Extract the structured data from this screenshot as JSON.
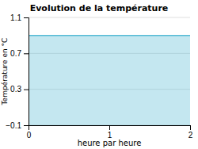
{
  "chart_data": {
    "type": "area",
    "title": "Evolution de la température",
    "xlabel": "heure par heure",
    "ylabel": "Température en °C",
    "x": [
      0,
      2
    ],
    "values": [
      0.9,
      0.9
    ],
    "color": "#55bbd5",
    "xlim": [
      0,
      2
    ],
    "xticks": [
      0,
      1,
      2
    ],
    "ylim": [
      -0.1,
      1.1
    ],
    "yticks": [
      {
        "value": -0.1,
        "label": "−0.1"
      },
      0.3,
      0.7,
      1.1
    ],
    "grid": "y"
  }
}
